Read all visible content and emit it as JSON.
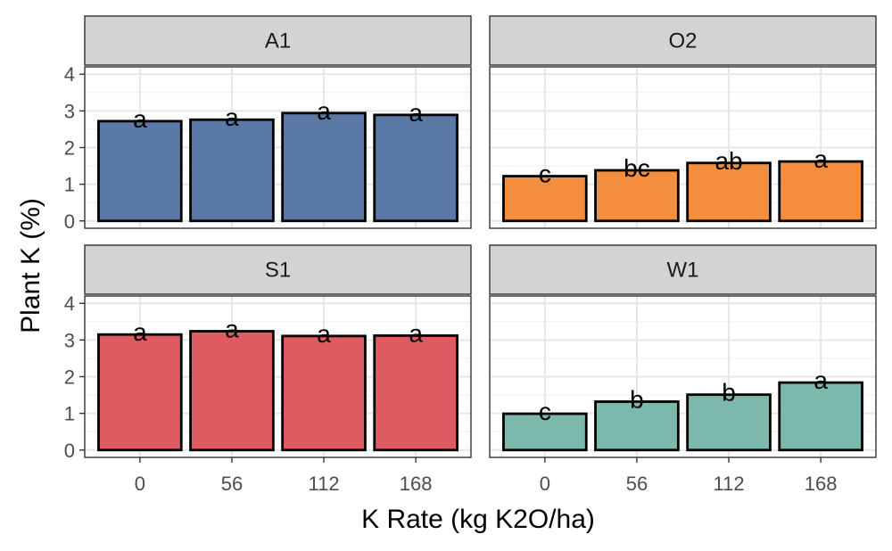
{
  "chart_data": {
    "type": "bar",
    "xlabel": "K Rate (kg K2O/ha)",
    "ylabel": "Plant K (%)",
    "categories": [
      "0",
      "56",
      "112",
      "168"
    ],
    "ylim": [
      0,
      4
    ],
    "yticks": [
      0,
      1,
      2,
      3,
      4
    ],
    "facet_layout": "2x2",
    "grid": true,
    "facets": [
      {
        "name": "A1",
        "color": "#5b79a6",
        "values": [
          2.72,
          2.76,
          2.94,
          2.89
        ],
        "labels": [
          "a",
          "a",
          "a",
          "a"
        ]
      },
      {
        "name": "O2",
        "color": "#f28e3e",
        "values": [
          1.22,
          1.38,
          1.58,
          1.62
        ],
        "labels": [
          "c",
          "bc",
          "ab",
          "a"
        ]
      },
      {
        "name": "S1",
        "color": "#e05a62",
        "values": [
          3.15,
          3.24,
          3.11,
          3.12
        ],
        "labels": [
          "a",
          "a",
          "a",
          "a"
        ]
      },
      {
        "name": "W1",
        "color": "#7db8ad",
        "values": [
          0.99,
          1.32,
          1.51,
          1.84
        ],
        "labels": [
          "c",
          "b",
          "b",
          "a"
        ]
      }
    ]
  }
}
